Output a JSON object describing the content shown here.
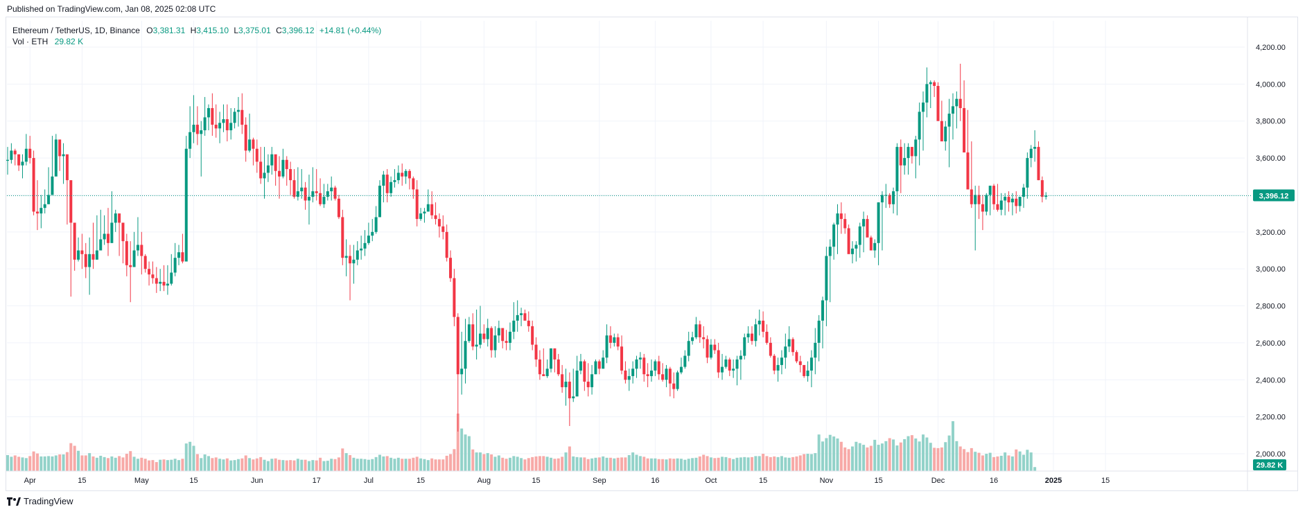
{
  "header": {
    "published": "Published on TradingView.com, Jan 08, 2025 02:08 UTC"
  },
  "legend": {
    "symbol": "Ethereum / TetherUS, 1D, Binance",
    "o_label": "O",
    "o_value": "3,381.31",
    "h_label": "H",
    "h_value": "3,415.10",
    "l_label": "L",
    "l_value": "3,375.01",
    "c_label": "C",
    "c_value": "3,396.12",
    "change": "+14.81 (+0.44%)",
    "vol_label": "Vol · ETH",
    "vol_value": "29.82 K"
  },
  "brand": {
    "name": "TradingView"
  },
  "colors": {
    "up": "#089981",
    "down": "#f23645",
    "vol_up": "#92d2c9",
    "vol_down": "#f7a9a7",
    "grid": "#f0f3fa",
    "axis_text": "#131722"
  },
  "chart_data": {
    "type": "candlestick",
    "title": "Ethereum / TetherUS, 1D, Binance",
    "y_axis": {
      "ticks": [
        2000,
        2200,
        2400,
        2600,
        2800,
        3000,
        3200,
        3400,
        3600,
        3800,
        4000,
        4200
      ],
      "tick_labels": [
        "2,000.00",
        "2,200.00",
        "2,400.00",
        "2,600.00",
        "2,800.00",
        "3,000.00",
        "3,200.00",
        "3,400.00",
        "3,600.00",
        "3,800.00",
        "4,000.00",
        "4,200.00"
      ],
      "range": [
        2000,
        4200
      ],
      "last_price": 3396.12,
      "last_price_label": "3,396.12",
      "volume_badge_label": "29.82 K"
    },
    "x_axis": {
      "start_date": "2024-03-26",
      "ticks": [
        {
          "date": "2024-04-01",
          "label": "Apr",
          "bold": false
        },
        {
          "date": "2024-04-15",
          "label": "15",
          "bold": false
        },
        {
          "date": "2024-05-01",
          "label": "May",
          "bold": false
        },
        {
          "date": "2024-05-15",
          "label": "15",
          "bold": false
        },
        {
          "date": "2024-06-01",
          "label": "Jun",
          "bold": false
        },
        {
          "date": "2024-06-17",
          "label": "17",
          "bold": false
        },
        {
          "date": "2024-07-01",
          "label": "Jul",
          "bold": false
        },
        {
          "date": "2024-07-15",
          "label": "15",
          "bold": false
        },
        {
          "date": "2024-08-01",
          "label": "Aug",
          "bold": false
        },
        {
          "date": "2024-08-15",
          "label": "15",
          "bold": false
        },
        {
          "date": "2024-09-01",
          "label": "Sep",
          "bold": false
        },
        {
          "date": "2024-09-16",
          "label": "16",
          "bold": false
        },
        {
          "date": "2024-10-01",
          "label": "Oct",
          "bold": false
        },
        {
          "date": "2024-10-15",
          "label": "15",
          "bold": false
        },
        {
          "date": "2024-11-01",
          "label": "Nov",
          "bold": false
        },
        {
          "date": "2024-11-15",
          "label": "15",
          "bold": false
        },
        {
          "date": "2024-12-01",
          "label": "Dec",
          "bold": false
        },
        {
          "date": "2024-12-16",
          "label": "16",
          "bold": false
        },
        {
          "date": "2025-01-01",
          "label": "2025",
          "bold": true
        },
        {
          "date": "2025-01-15",
          "label": "15",
          "bold": false
        }
      ]
    },
    "closes": [
      3590,
      3640,
      3620,
      3560,
      3580,
      3650,
      3600,
      3310,
      3300,
      3330,
      3350,
      3400,
      3500,
      3700,
      3610,
      3620,
      3480,
      3250,
      3050,
      3100,
      3080,
      3010,
      3080,
      3050,
      3100,
      3160,
      3190,
      3140,
      3250,
      3300,
      3250,
      3150,
      3020,
      3010,
      3100,
      3130,
      3070,
      3000,
      2970,
      2950,
      2920,
      2930,
      2910,
      2920,
      2980,
      3060,
      3090,
      3040,
      3650,
      3740,
      3780,
      3730,
      3750,
      3820,
      3870,
      3780,
      3760,
      3790,
      3810,
      3750,
      3790,
      3850,
      3860,
      3780,
      3640,
      3700,
      3650,
      3580,
      3490,
      3520,
      3560,
      3620,
      3530,
      3500,
      3590,
      3540,
      3480,
      3390,
      3420,
      3440,
      3370,
      3390,
      3420,
      3410,
      3350,
      3390,
      3420,
      3440,
      3380,
      3280,
      3060,
      3070,
      3030,
      3050,
      3100,
      3110,
      3140,
      3180,
      3200,
      3280,
      3450,
      3510,
      3410,
      3470,
      3480,
      3520,
      3500,
      3530,
      3490,
      3430,
      3270,
      3300,
      3310,
      3350,
      3290,
      3270,
      3230,
      3200,
      3060,
      2950,
      2740,
      2430,
      2460,
      2610,
      2700,
      2580,
      2590,
      2650,
      2620,
      2680,
      2560,
      2640,
      2680,
      2610,
      2600,
      2660,
      2720,
      2750,
      2760,
      2720,
      2690,
      2590,
      2510,
      2430,
      2420,
      2460,
      2570,
      2510,
      2430,
      2360,
      2390,
      2300,
      2310,
      2450,
      2500,
      2390,
      2360,
      2430,
      2500,
      2460,
      2520,
      2640,
      2600,
      2630,
      2580,
      2450,
      2400,
      2420,
      2460,
      2510,
      2520,
      2430,
      2420,
      2450,
      2500,
      2430,
      2400,
      2460,
      2380,
      2350,
      2440,
      2470,
      2530,
      2610,
      2630,
      2700,
      2630,
      2620,
      2520,
      2590,
      2560,
      2440,
      2470,
      2510,
      2450,
      2460,
      2510,
      2530,
      2630,
      2650,
      2610,
      2700,
      2720,
      2660,
      2600,
      2530,
      2450,
      2480,
      2520,
      2580,
      2620,
      2550,
      2500,
      2480,
      2420,
      2450,
      2520,
      2600,
      2720,
      2830,
      3070,
      3120,
      3240,
      3300,
      3270,
      3220,
      3080,
      3110,
      3130,
      3230,
      3270,
      3170,
      3100,
      3140,
      3360,
      3400,
      3400,
      3350,
      3420,
      3660,
      3560,
      3600,
      3660,
      3610,
      3700,
      3850,
      3900,
      4000,
      4010,
      3990,
      3800,
      3690,
      3770,
      3840,
      3880,
      3920,
      3870,
      3630,
      3430,
      3350,
      3400,
      3350,
      3310,
      3400,
      3450,
      3350,
      3320,
      3370,
      3390,
      3360,
      3380,
      3340,
      3390,
      3440,
      3600,
      3650,
      3660,
      3480,
      3390,
      3396.12
    ],
    "highs": [
      3660,
      3680,
      3650,
      3610,
      3620,
      3730,
      3720,
      3640,
      3480,
      3400,
      3430,
      3550,
      3720,
      3730,
      3640,
      3680,
      3610,
      3320,
      3200,
      3170,
      3190,
      3140,
      3170,
      3250,
      3290,
      3320,
      3290,
      3330,
      3420,
      3320,
      3290,
      3210,
      3190,
      3150,
      3200,
      3280,
      3200,
      3080,
      3040,
      3040,
      3010,
      3000,
      3020,
      3020,
      3080,
      3140,
      3130,
      3190,
      3720,
      3880,
      3940,
      3880,
      3800,
      3930,
      3890,
      3950,
      3890,
      3850,
      3890,
      3890,
      3870,
      3870,
      3930,
      3950,
      3820,
      3840,
      3710,
      3700,
      3660,
      3660,
      3620,
      3660,
      3610,
      3610,
      3650,
      3610,
      3580,
      3540,
      3550,
      3540,
      3470,
      3510,
      3550,
      3540,
      3490,
      3460,
      3460,
      3500,
      3450,
      3400,
      3320,
      3160,
      3130,
      3130,
      3150,
      3180,
      3210,
      3250,
      3270,
      3340,
      3480,
      3530,
      3540,
      3500,
      3540,
      3560,
      3570,
      3540,
      3540,
      3500,
      3480,
      3330,
      3330,
      3430,
      3420,
      3360,
      3300,
      3290,
      3240,
      3100,
      3000,
      2760,
      2660,
      2730,
      2740,
      2760,
      2780,
      2800,
      2700,
      2730,
      2690,
      2690,
      2720,
      2670,
      2670,
      2710,
      2820,
      2830,
      2790,
      2780,
      2770,
      2720,
      2630,
      2560,
      2570,
      2510,
      2570,
      2570,
      2540,
      2480,
      2460,
      2440,
      2460,
      2530,
      2540,
      2510,
      2490,
      2480,
      2510,
      2510,
      2560,
      2700,
      2690,
      2650,
      2650,
      2640,
      2500,
      2460,
      2500,
      2530,
      2550,
      2540,
      2490,
      2510,
      2510,
      2530,
      2490,
      2480,
      2470,
      2440,
      2450,
      2520,
      2560,
      2660,
      2660,
      2740,
      2720,
      2690,
      2640,
      2620,
      2620,
      2600,
      2540,
      2530,
      2520,
      2510,
      2530,
      2560,
      2650,
      2690,
      2690,
      2730,
      2780,
      2770,
      2700,
      2630,
      2540,
      2520,
      2560,
      2650,
      2690,
      2630,
      2560,
      2530,
      2450,
      2500,
      2560,
      2680,
      2750,
      2850,
      3120,
      3160,
      3250,
      3350,
      3360,
      3300,
      3240,
      3150,
      3150,
      3250,
      3310,
      3290,
      3180,
      3160,
      3360,
      3420,
      3460,
      3410,
      3440,
      3680,
      3700,
      3680,
      3680,
      3650,
      3720,
      3900,
      3960,
      4090,
      4020,
      4020,
      4010,
      3910,
      3800,
      3920,
      3950,
      3960,
      4110,
      4020,
      3860,
      3690,
      3450,
      3450,
      3400,
      3410,
      3450,
      3460,
      3460,
      3410,
      3410,
      3420,
      3410,
      3420,
      3390,
      3460,
      3630,
      3670,
      3750,
      3690,
      3500,
      3415.1
    ],
    "lows": [
      3510,
      3570,
      3560,
      3530,
      3490,
      3560,
      3570,
      3290,
      3210,
      3220,
      3300,
      3350,
      3490,
      3560,
      3530,
      3460,
      3240,
      2850,
      2990,
      3040,
      3000,
      2950,
      2860,
      3000,
      3060,
      3100,
      3130,
      3070,
      3140,
      3200,
      3070,
      3030,
      2960,
      2820,
      3040,
      3070,
      2970,
      2980,
      2910,
      2920,
      2870,
      2880,
      2880,
      2860,
      2910,
      2960,
      3020,
      3030,
      3050,
      3600,
      3680,
      3670,
      3500,
      3720,
      3750,
      3720,
      3710,
      3680,
      3740,
      3690,
      3700,
      3760,
      3770,
      3730,
      3580,
      3630,
      3560,
      3520,
      3460,
      3380,
      3470,
      3510,
      3450,
      3380,
      3490,
      3450,
      3400,
      3380,
      3370,
      3380,
      3320,
      3240,
      3360,
      3370,
      3340,
      3330,
      3370,
      3370,
      3370,
      3270,
      3020,
      2960,
      2830,
      2920,
      3020,
      3050,
      3070,
      3130,
      3150,
      3190,
      3280,
      3360,
      3360,
      3390,
      3440,
      3460,
      3450,
      3460,
      3430,
      3380,
      3230,
      3260,
      3250,
      3310,
      3270,
      3240,
      3170,
      3160,
      3040,
      2930,
      2690,
      2120,
      2320,
      2380,
      2600,
      2560,
      2510,
      2570,
      2600,
      2580,
      2520,
      2520,
      2600,
      2570,
      2560,
      2560,
      2620,
      2660,
      2690,
      2720,
      2660,
      2560,
      2470,
      2400,
      2420,
      2410,
      2440,
      2440,
      2420,
      2330,
      2260,
      2150,
      2280,
      2310,
      2430,
      2340,
      2310,
      2320,
      2430,
      2430,
      2460,
      2490,
      2570,
      2580,
      2560,
      2430,
      2380,
      2340,
      2380,
      2410,
      2460,
      2390,
      2360,
      2390,
      2420,
      2400,
      2390,
      2360,
      2310,
      2300,
      2340,
      2430,
      2460,
      2500,
      2590,
      2620,
      2600,
      2570,
      2490,
      2510,
      2540,
      2410,
      2400,
      2460,
      2420,
      2410,
      2370,
      2400,
      2510,
      2600,
      2590,
      2580,
      2640,
      2630,
      2590,
      2520,
      2430,
      2390,
      2430,
      2460,
      2550,
      2530,
      2490,
      2440,
      2410,
      2390,
      2360,
      2430,
      2500,
      2570,
      2690,
      2820,
      3050,
      3080,
      3190,
      3190,
      3140,
      3030,
      3040,
      3060,
      3090,
      3180,
      3150,
      3060,
      3020,
      3100,
      3330,
      3330,
      3300,
      3290,
      3410,
      3510,
      3510,
      3570,
      3490,
      3560,
      3640,
      3820,
      3870,
      3930,
      3950,
      3760,
      3640,
      3550,
      3700,
      3760,
      3800,
      3800,
      3600,
      3330,
      3100,
      3270,
      3210,
      3290,
      3290,
      3320,
      3310,
      3290,
      3290,
      3310,
      3290,
      3300,
      3310,
      3330,
      3380,
      3550,
      3580,
      3480,
      3360,
      3375.01
    ],
    "volumes": [
      48,
      43,
      47,
      43,
      41,
      39,
      45,
      59,
      53,
      44,
      44,
      45,
      44,
      47,
      50,
      50,
      57,
      84,
      76,
      61,
      47,
      47,
      54,
      44,
      40,
      46,
      42,
      39,
      44,
      40,
      45,
      41,
      52,
      60,
      43,
      37,
      40,
      37,
      32,
      33,
      27,
      34,
      35,
      33,
      34,
      37,
      33,
      37,
      83,
      88,
      76,
      51,
      39,
      50,
      45,
      39,
      41,
      37,
      35,
      38,
      32,
      33,
      36,
      38,
      47,
      39,
      35,
      38,
      42,
      34,
      30,
      37,
      38,
      34,
      33,
      32,
      33,
      32,
      37,
      34,
      34,
      30,
      33,
      32,
      40,
      30,
      31,
      37,
      36,
      41,
      68,
      54,
      48,
      40,
      37,
      37,
      36,
      34,
      36,
      42,
      49,
      44,
      45,
      40,
      37,
      40,
      37,
      37,
      37,
      40,
      43,
      38,
      36,
      33,
      38,
      35,
      35,
      35,
      46,
      51,
      66,
      173,
      128,
      110,
      105,
      65,
      56,
      56,
      51,
      54,
      50,
      43,
      47,
      40,
      37,
      40,
      45,
      43,
      39,
      35,
      39,
      42,
      44,
      45,
      45,
      43,
      40,
      37,
      38,
      43,
      56,
      74,
      44,
      42,
      41,
      41,
      36,
      38,
      40,
      41,
      44,
      40,
      40,
      38,
      40,
      41,
      41,
      48,
      56,
      49,
      45,
      43,
      38,
      38,
      38,
      36,
      36,
      35,
      38,
      37,
      38,
      37,
      34,
      37,
      39,
      40,
      44,
      49,
      45,
      41,
      39,
      40,
      43,
      42,
      39,
      36,
      40,
      41,
      42,
      41,
      42,
      45,
      45,
      52,
      45,
      42,
      44,
      42,
      45,
      41,
      40,
      42,
      44,
      47,
      51,
      52,
      51,
      54,
      110,
      89,
      99,
      109,
      104,
      98,
      88,
      71,
      66,
      74,
      88,
      84,
      79,
      71,
      76,
      94,
      79,
      83,
      90,
      99,
      95,
      77,
      86,
      96,
      105,
      108,
      98,
      89,
      110,
      101,
      85,
      70,
      69,
      71,
      87,
      107,
      150,
      90,
      74,
      66,
      57,
      69,
      58,
      55,
      47,
      52,
      55,
      42,
      44,
      46,
      56,
      47,
      44,
      65,
      59,
      49,
      64,
      56,
      12
    ]
  }
}
